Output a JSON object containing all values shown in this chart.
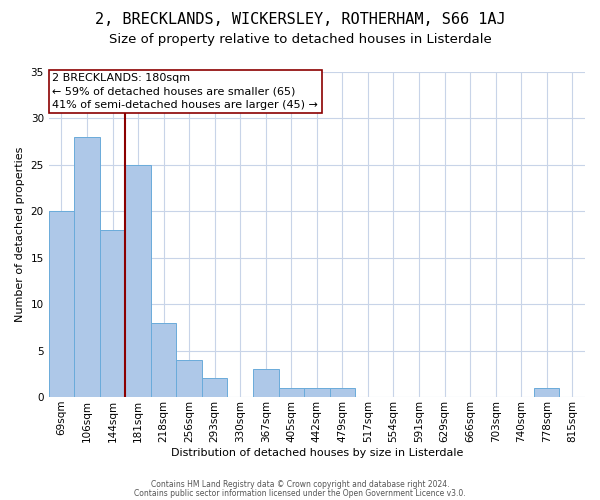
{
  "title": "2, BRECKLANDS, WICKERSLEY, ROTHERHAM, S66 1AJ",
  "subtitle": "Size of property relative to detached houses in Listerdale",
  "xlabel": "Distribution of detached houses by size in Listerdale",
  "ylabel": "Number of detached properties",
  "categories": [
    "69sqm",
    "106sqm",
    "144sqm",
    "181sqm",
    "218sqm",
    "256sqm",
    "293sqm",
    "330sqm",
    "367sqm",
    "405sqm",
    "442sqm",
    "479sqm",
    "517sqm",
    "554sqm",
    "591sqm",
    "629sqm",
    "666sqm",
    "703sqm",
    "740sqm",
    "778sqm",
    "815sqm"
  ],
  "values": [
    20,
    28,
    18,
    25,
    8,
    4,
    2,
    0,
    3,
    1,
    1,
    1,
    0,
    0,
    0,
    0,
    0,
    0,
    0,
    1,
    0
  ],
  "bar_color": "#aec8e8",
  "bar_edge_color": "#6aabda",
  "highlight_line_color": "#8b0000",
  "annotation_line1": "2 BRECKLANDS: 180sqm",
  "annotation_line2": "← 59% of detached houses are smaller (65)",
  "annotation_line3": "41% of semi-detached houses are larger (45) →",
  "annotation_box_color": "#ffffff",
  "annotation_box_edge_color": "#8b0000",
  "ylim": [
    0,
    35
  ],
  "yticks": [
    0,
    5,
    10,
    15,
    20,
    25,
    30,
    35
  ],
  "footer_line1": "Contains HM Land Registry data © Crown copyright and database right 2024.",
  "footer_line2": "Contains public sector information licensed under the Open Government Licence v3.0.",
  "background_color": "#ffffff",
  "grid_color": "#c8d4e8",
  "title_fontsize": 11,
  "subtitle_fontsize": 9.5,
  "annotation_fontsize": 8,
  "axis_label_fontsize": 8,
  "tick_fontsize": 7.5
}
